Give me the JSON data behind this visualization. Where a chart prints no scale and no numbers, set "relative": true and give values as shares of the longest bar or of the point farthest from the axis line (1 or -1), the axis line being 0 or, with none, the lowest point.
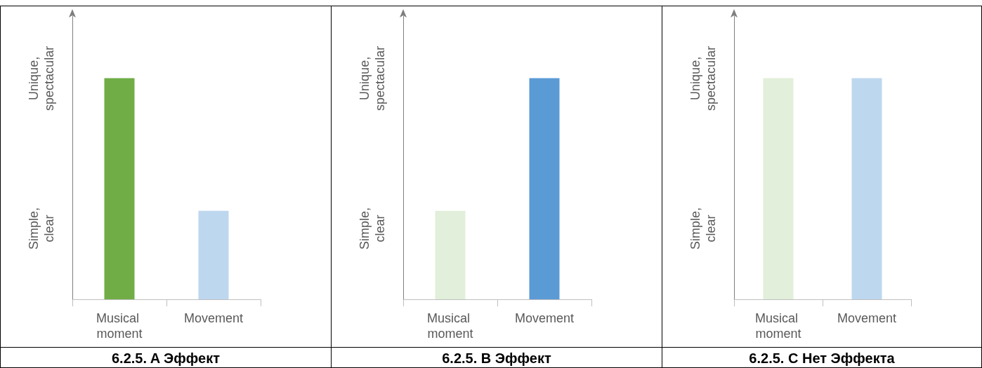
{
  "chart_data": [
    {
      "type": "bar",
      "title": "6.2.5. A Эффект",
      "categories": [
        "Musical moment",
        "Movement"
      ],
      "values": [
        1,
        0.4
      ],
      "colors": [
        "#70ad47",
        "#bdd7ee"
      ],
      "relative": true,
      "annotations": [
        "Unique, spectacular",
        "Simple, clear"
      ]
    },
    {
      "type": "bar",
      "title": "6.2.5. B Эффект",
      "categories": [
        "Musical moment",
        "Movement"
      ],
      "values": [
        0.4,
        1
      ],
      "colors": [
        "#e2efda",
        "#5b9bd5"
      ],
      "relative": true,
      "annotations": [
        "Unique, spectacular",
        "Simple, clear"
      ]
    },
    {
      "type": "bar",
      "title": "6.2.5. C Нет Эффекта",
      "categories": [
        "Musical moment",
        "Movement"
      ],
      "values": [
        1,
        1
      ],
      "colors": [
        "#e2efda",
        "#bdd7ee"
      ],
      "relative": true,
      "annotations": [
        "Unique, spectacular",
        "Simple, clear"
      ]
    }
  ]
}
